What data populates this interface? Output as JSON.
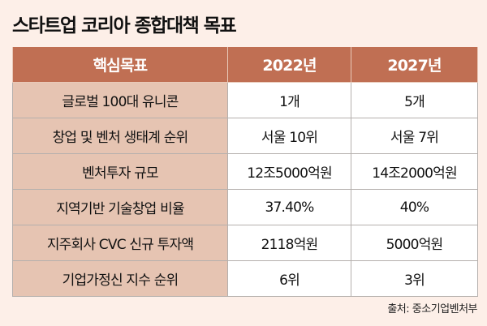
{
  "title": "스타트업 코리아 종합대책 목표",
  "table": {
    "headers": [
      "핵심목표",
      "2022년",
      "2027년"
    ],
    "rows": [
      [
        "글로벌 100대 유니콘",
        "1개",
        "5개"
      ],
      [
        "창업 및 벤처 생태계 순위",
        "서울 10위",
        "서울 7위"
      ],
      [
        "벤처투자 규모",
        "12조5000억원",
        "14조2000억원"
      ],
      [
        "지역기반 기술창업 비율",
        "37.40%",
        "40%"
      ],
      [
        "지주회사 CVC 신규 투자액",
        "2118억원",
        "5000억원"
      ],
      [
        "기업가정신 지수 순위",
        "6위",
        "3위"
      ]
    ]
  },
  "source": "출처: 중소기업벤처부",
  "colors": {
    "header": "#c06f53",
    "label_cell": "#e6c4b2",
    "background": "#fdefe8"
  }
}
